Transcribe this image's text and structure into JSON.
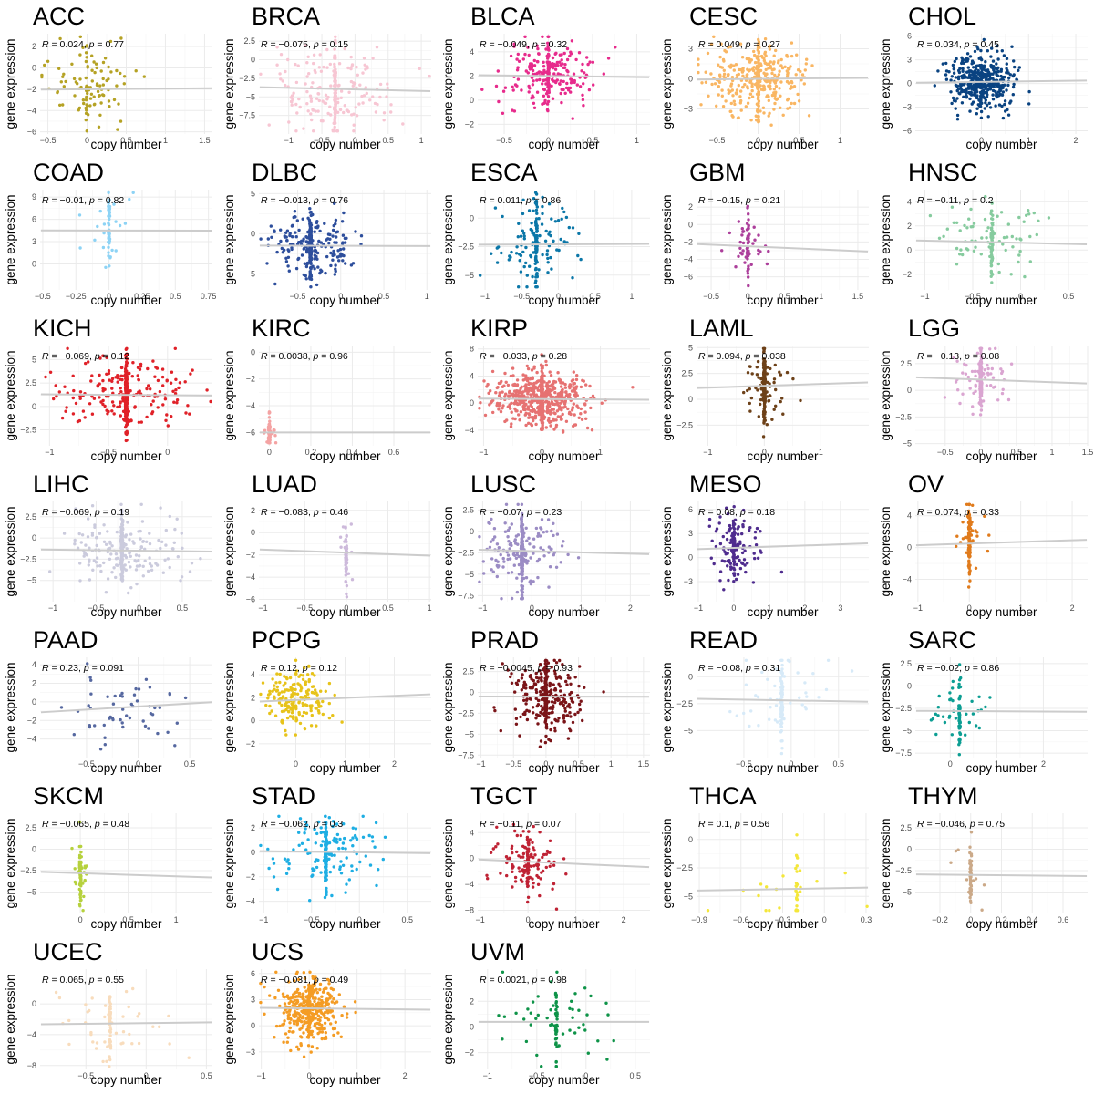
{
  "figure": {
    "xlabel": "copy number",
    "ylabel": "gene expression"
  },
  "chart_data": [
    {
      "type": "scatter",
      "title": "ACC",
      "r": "0.024",
      "p": "0.77",
      "xlim": [
        -0.6,
        1.6
      ],
      "ylim": [
        -6.2,
        3.2
      ],
      "xticks": [
        -0.5,
        0,
        0.5,
        1,
        1.5
      ],
      "yticks": [
        -6,
        -4,
        -2,
        0,
        2
      ],
      "color": "#B5A224",
      "n": 110,
      "xc": 0.0,
      "xsd": 0.3,
      "ysd": 1.9,
      "ymean": -2,
      "slope": 0.2,
      "anchor": 0.12,
      "seed": 1
    },
    {
      "type": "scatter",
      "title": "BRCA",
      "r": "−0.075",
      "p": "0.15",
      "xlim": [
        -1.45,
        1.15
      ],
      "ylim": [
        -10,
        3.5
      ],
      "xticks": [
        -1,
        -0.5,
        0,
        0.5,
        1
      ],
      "yticks": [
        2.5,
        0,
        -2.5,
        -5,
        -7.5
      ],
      "color": "#F7C6D3",
      "n": 230,
      "xc": -0.3,
      "xsd": 0.45,
      "ysd": 2.8,
      "ymean": -4,
      "slope": -0.7,
      "anchor": 0.35,
      "seed": 2
    },
    {
      "type": "scatter",
      "title": "BLCA",
      "r": "−0.049",
      "p": "0.32",
      "xlim": [
        -0.8,
        1.15
      ],
      "ylim": [
        -2.8,
        5.5
      ],
      "xticks": [
        -0.5,
        0,
        0.5,
        1
      ],
      "yticks": [
        4,
        2,
        0,
        -2
      ],
      "color": "#E72B8C",
      "n": 260,
      "xc": 0.0,
      "xsd": 0.28,
      "ysd": 1.4,
      "ymean": 2,
      "slope": -0.3,
      "anchor": 0.25,
      "seed": 3
    },
    {
      "type": "scatter",
      "title": "CESC",
      "r": "0.049",
      "p": "0.27",
      "xlim": [
        -0.75,
        1.35
      ],
      "ylim": [
        -5.5,
        4.5
      ],
      "xticks": [
        -0.5,
        0,
        0.5,
        1
      ],
      "yticks": [
        3,
        0,
        -3
      ],
      "color": "#F9B663",
      "n": 380,
      "xc": 0.0,
      "xsd": 0.3,
      "ysd": 1.7,
      "ymean": 0,
      "slope": 0.3,
      "anchor": 0.2,
      "seed": 4
    },
    {
      "type": "scatter",
      "title": "CHOL",
      "r": "0.034",
      "p": "0.45",
      "xlim": [
        -1.4,
        2.25
      ],
      "ylim": [
        -6.4,
        6.3
      ],
      "xticks": [
        0,
        1,
        2
      ],
      "yticks": [
        6,
        3,
        0,
        -3,
        -6
      ],
      "color": "#0A4381",
      "n": 440,
      "xc": 0.0,
      "xsd": 0.35,
      "ysd": 1.8,
      "ymean": 0.2,
      "slope": 0.25,
      "anchor": 0.1,
      "seed": 5
    },
    {
      "type": "scatter",
      "title": "COAD",
      "r": "−0.01",
      "p": "0.82",
      "xlim": [
        -0.52,
        0.78
      ],
      "ylim": [
        -3.5,
        10
      ],
      "xticks": [
        -0.5,
        -0.25,
        0,
        0.25,
        0.5,
        0.75
      ],
      "yticks": [
        9,
        6,
        3,
        0
      ],
      "color": "#8DD3F5",
      "n": 60,
      "xc": 0.0,
      "xsd": 0.1,
      "ysd": 2.2,
      "ymean": 4.5,
      "slope": -0.1,
      "anchor": 0.7,
      "seed": 6
    },
    {
      "type": "scatter",
      "title": "DLBC",
      "r": "−0.013",
      "p": "0.76",
      "xlim": [
        -0.95,
        1.05
      ],
      "ylim": [
        -7,
        5.5
      ],
      "xticks": [
        -0.5,
        0,
        0.5,
        1
      ],
      "yticks": [
        5,
        0,
        -5
      ],
      "color": "#2D4E9C",
      "n": 330,
      "xc": -0.35,
      "xsd": 0.25,
      "ysd": 1.8,
      "ymean": -1.5,
      "slope": -0.1,
      "anchor": 0.45,
      "seed": 7
    },
    {
      "type": "scatter",
      "title": "ESCA",
      "r": "0.011",
      "p": "0.86",
      "xlim": [
        -1.1,
        1.25
      ],
      "ylim": [
        -6.3,
        2.5
      ],
      "xticks": [
        -1,
        -0.5,
        0,
        0.5,
        1
      ],
      "yticks": [
        0,
        -2.5,
        -5
      ],
      "color": "#0B77A8",
      "n": 180,
      "xc": -0.3,
      "xsd": 0.3,
      "ysd": 1.8,
      "ymean": -2.3,
      "slope": 0.1,
      "anchor": 0.45,
      "seed": 8
    },
    {
      "type": "scatter",
      "title": "GBM",
      "r": "−0.15",
      "p": "0.21",
      "xlim": [
        -0.7,
        1.65
      ],
      "ylim": [
        -7.5,
        4
      ],
      "xticks": [
        -0.5,
        0,
        0.5,
        1,
        1.5
      ],
      "yticks": [
        2,
        0,
        -2,
        -4,
        -6
      ],
      "color": "#AC3F9B",
      "n": 70,
      "xc": 0.0,
      "xsd": 0.15,
      "ysd": 2,
      "ymean": -2.5,
      "slope": -1.2,
      "anchor": 0.55,
      "seed": 9
    },
    {
      "type": "scatter",
      "title": "HNSC",
      "r": "−0.11",
      "p": "0.2",
      "xlim": [
        -1.1,
        0.7
      ],
      "ylim": [
        -3.3,
        5
      ],
      "xticks": [
        -1,
        -0.5,
        0,
        0.5
      ],
      "yticks": [
        4,
        2,
        0,
        -2
      ],
      "color": "#86CB9E",
      "n": 130,
      "xc": -0.3,
      "xsd": 0.3,
      "ysd": 1.5,
      "ymean": 0.6,
      "slope": -0.6,
      "anchor": 0.5,
      "seed": 10
    },
    {
      "type": "scatter",
      "title": "KICH",
      "r": "−0.069",
      "p": "0.12",
      "xlim": [
        -1.08,
        0.38
      ],
      "ylim": [
        -4.2,
        6.5
      ],
      "xticks": [
        -1,
        -0.5,
        0
      ],
      "yticks": [
        5,
        2.5,
        0,
        -2.5
      ],
      "color": "#E02128",
      "n": 420,
      "xc": -0.35,
      "xsd": 0.3,
      "ysd": 1.8,
      "ymean": 1.2,
      "slope": -0.3,
      "anchor": 0.6,
      "seed": 11
    },
    {
      "type": "scatter",
      "title": "KIRC",
      "r": "0.0038",
      "p": "0.96",
      "xlim": [
        -0.05,
        0.78
      ],
      "ylim": [
        -7,
        0.5
      ],
      "xticks": [
        0,
        0.2,
        0.4,
        0.6
      ],
      "yticks": [
        0,
        -2,
        -4,
        -6
      ],
      "color": "#F4A3A3",
      "n": 45,
      "xc": 0.0,
      "xsd": 0.02,
      "ysd": 0.8,
      "ymean": -6,
      "slope": 0,
      "anchor": 0.8,
      "seed": 12
    },
    {
      "type": "scatter",
      "title": "KIRP",
      "r": "−0.033",
      "p": "0.28",
      "xlim": [
        -1.1,
        1.85
      ],
      "ylim": [
        -6.3,
        8.5
      ],
      "xticks": [
        -1,
        0,
        1
      ],
      "yticks": [
        8,
        4,
        0,
        -4
      ],
      "color": "#E67272",
      "n": 700,
      "xc": 0.0,
      "xsd": 0.4,
      "ysd": 2,
      "ymean": 0.6,
      "slope": -0.2,
      "anchor": 0.3,
      "seed": 13
    },
    {
      "type": "scatter",
      "title": "LAML",
      "r": "0.094",
      "p": "0.038",
      "xlim": [
        -1.2,
        1.85
      ],
      "ylim": [
        -4.5,
        5.2
      ],
      "xticks": [
        -1,
        0,
        1
      ],
      "yticks": [
        5,
        2.5,
        0,
        -2.5
      ],
      "color": "#6D4119",
      "n": 240,
      "xc": 0.0,
      "xsd": 0.2,
      "ysd": 1.6,
      "ymean": 1.3,
      "slope": 0.6,
      "anchor": 0.75,
      "seed": 14
    },
    {
      "type": "scatter",
      "title": "LGG",
      "r": "−0.13",
      "p": "0.08",
      "xlim": [
        -0.92,
        1.5
      ],
      "ylim": [
        -5.2,
        4.2
      ],
      "xticks": [
        -0.5,
        0,
        0.5,
        1,
        1.5
      ],
      "yticks": [
        2.5,
        0,
        -2.5,
        -5
      ],
      "color": "#DAA5D1",
      "n": 190,
      "xc": 0.0,
      "xsd": 0.2,
      "ysd": 1.2,
      "ymean": 1.0,
      "slope": -0.8,
      "anchor": 0.6,
      "seed": 15
    },
    {
      "type": "scatter",
      "title": "LIHC",
      "r": "−0.069",
      "p": "0.19",
      "xlim": [
        -1.15,
        0.85
      ],
      "ylim": [
        -7.5,
        4.3
      ],
      "xticks": [
        -1,
        -0.5,
        0,
        0.5
      ],
      "yticks": [
        2.5,
        0,
        -2.5,
        -5
      ],
      "color": "#CBCBDD",
      "n": 300,
      "xc": -0.2,
      "xsd": 0.35,
      "ysd": 2.0,
      "ymean": -1.5,
      "slope": -0.4,
      "anchor": 0.5,
      "seed": 16
    },
    {
      "type": "scatter",
      "title": "LUAD",
      "r": "−0.083",
      "p": "0.46",
      "xlim": [
        -1.05,
        1.02
      ],
      "ylim": [
        -6.2,
        2.8
      ],
      "xticks": [
        -1,
        -0.5,
        0,
        0.5,
        1
      ],
      "yticks": [
        2,
        0,
        -2,
        -4,
        -6
      ],
      "color": "#CDBADB",
      "n": 60,
      "xc": 0.0,
      "xsd": 0.06,
      "ysd": 1.5,
      "ymean": -1.8,
      "slope": -0.9,
      "anchor": 0.8,
      "seed": 17
    },
    {
      "type": "scatter",
      "title": "LUSC",
      "r": "−0.07",
      "p": "0.23",
      "xlim": [
        -1.1,
        2.4
      ],
      "ylim": [
        -8.2,
        3.5
      ],
      "xticks": [
        -1,
        0,
        1,
        2
      ],
      "yticks": [
        2.5,
        0,
        -2.5,
        -5,
        -7.5
      ],
      "color": "#9B8CC4",
      "n": 310,
      "xc": -0.2,
      "xsd": 0.4,
      "ysd": 2.2,
      "ymean": -2.3,
      "slope": -0.5,
      "anchor": 0.5,
      "seed": 18
    },
    {
      "type": "scatter",
      "title": "MESO",
      "r": "0.08",
      "p": "0.18",
      "xlim": [
        -1.05,
        3.8
      ],
      "ylim": [
        -5.5,
        7
      ],
      "xticks": [
        -1,
        0,
        1,
        2,
        3
      ],
      "yticks": [
        6,
        3,
        0,
        -3
      ],
      "color": "#4F2C8E",
      "n": 160,
      "xc": 0.0,
      "xsd": 0.35,
      "ysd": 2,
      "ymean": 1.2,
      "slope": 0.5,
      "anchor": 0.3,
      "seed": 19
    },
    {
      "type": "scatter",
      "title": "OV",
      "r": "0.074",
      "p": "0.33",
      "xlim": [
        -1.05,
        2.3
      ],
      "ylim": [
        -6.8,
        5.8
      ],
      "xticks": [
        -1,
        0,
        1,
        2
      ],
      "yticks": [
        4,
        0,
        -4
      ],
      "color": "#E07B1C",
      "n": 120,
      "xc": 0.0,
      "xsd": 0.15,
      "ysd": 2.3,
      "ymean": 0.5,
      "slope": 0.7,
      "anchor": 0.8,
      "seed": 20
    },
    {
      "type": "scatter",
      "title": "PAAD",
      "r": "0.23",
      "p": "0.091",
      "xlim": [
        -0.95,
        0.72
      ],
      "ylim": [
        -6,
        4.8
      ],
      "xticks": [
        -0.5,
        0,
        0.5
      ],
      "yticks": [
        4,
        2,
        0,
        -2,
        -4
      ],
      "color": "#5668A0",
      "n": 55,
      "xc": -0.15,
      "xsd": 0.35,
      "ysd": 2,
      "ymean": -0.5,
      "slope": 2.2,
      "anchor": 0.1,
      "seed": 21
    },
    {
      "type": "scatter",
      "title": "PCPG",
      "r": "0.12",
      "p": "0.12",
      "xlim": [
        -0.75,
        2.75
      ],
      "ylim": [
        -3.2,
        5.5
      ],
      "xticks": [
        0,
        1,
        2
      ],
      "yticks": [
        4,
        2,
        0,
        -2
      ],
      "color": "#E7C31A",
      "n": 190,
      "xc": 0.0,
      "xsd": 0.3,
      "ysd": 1.3,
      "ymean": 1.8,
      "slope": 0.6,
      "anchor": 0.1,
      "seed": 22
    },
    {
      "type": "scatter",
      "title": "PRAD",
      "r": "−0.0045",
      "p": "0.93",
      "xlim": [
        -1.05,
        1.6
      ],
      "ylim": [
        -7.8,
        4.2
      ],
      "xticks": [
        -1,
        -0.5,
        0,
        0.5,
        1,
        1.5
      ],
      "yticks": [
        2.5,
        0,
        -2.5,
        -5,
        -7.5
      ],
      "color": "#7A1418",
      "n": 340,
      "xc": 0.0,
      "xsd": 0.3,
      "ysd": 2.0,
      "ymean": -0.5,
      "slope": -0.05,
      "anchor": 0.35,
      "seed": 23
    },
    {
      "type": "scatter",
      "title": "READ",
      "r": "−0.08",
      "p": "0.31",
      "xlim": [
        -1.0,
        0.82
      ],
      "ylim": [
        -7.5,
        1.8
      ],
      "xticks": [
        -0.5,
        0,
        0.5
      ],
      "yticks": [
        0,
        -2.5,
        -5
      ],
      "color": "#D7EAF8",
      "n": 120,
      "xc": -0.1,
      "xsd": 0.3,
      "ysd": 1.8,
      "ymean": -2.2,
      "slope": -0.5,
      "anchor": 0.6,
      "seed": 24
    },
    {
      "type": "scatter",
      "title": "SARC",
      "r": "−0.02",
      "p": "0.86",
      "xlim": [
        -0.75,
        2.95
      ],
      "ylim": [
        -8,
        3.2
      ],
      "xticks": [
        0,
        1,
        2
      ],
      "yticks": [
        2.5,
        0,
        -2.5,
        -5,
        -7.5
      ],
      "color": "#0C9E93",
      "n": 80,
      "xc": 0.2,
      "xsd": 0.4,
      "ysd": 1.9,
      "ymean": -2.8,
      "slope": -0.1,
      "anchor": 0.5,
      "seed": 25
    },
    {
      "type": "scatter",
      "title": "SKCM",
      "r": "−0.065",
      "p": "0.48",
      "xlim": [
        -0.42,
        1.38
      ],
      "ylim": [
        -7.5,
        4.2
      ],
      "xticks": [
        0,
        0.5,
        1
      ],
      "yticks": [
        2.5,
        0,
        -2.5,
        -5
      ],
      "color": "#B6D13D",
      "n": 80,
      "xc": 0.0,
      "xsd": 0.05,
      "ysd": 1.8,
      "ymean": -2.8,
      "slope": -1.2,
      "anchor": 0.8,
      "seed": 26
    },
    {
      "type": "scatter",
      "title": "STAD",
      "r": "−0.062",
      "p": "0.3",
      "xlim": [
        -1.05,
        0.75
      ],
      "ylim": [
        -5,
        3.2
      ],
      "xticks": [
        -1,
        -0.5,
        0,
        0.5
      ],
      "yticks": [
        2,
        0,
        -2,
        -4
      ],
      "color": "#1EAEE3",
      "n": 250,
      "xc": -0.35,
      "xsd": 0.3,
      "ysd": 1.4,
      "ymean": 0,
      "slope": -0.3,
      "anchor": 0.5,
      "seed": 27
    },
    {
      "type": "scatter",
      "title": "TGCT",
      "r": "−0.11",
      "p": "0.07",
      "xlim": [
        -1.05,
        2.55
      ],
      "ylim": [
        -8.5,
        7
      ],
      "xticks": [
        -1,
        0,
        1,
        2
      ],
      "yticks": [
        4,
        0,
        -4,
        -8
      ],
      "color": "#BF2234",
      "n": 160,
      "xc": 0.0,
      "xsd": 0.4,
      "ysd": 2.4,
      "ymean": -0.5,
      "slope": -1.1,
      "anchor": 0.35,
      "seed": 28
    },
    {
      "type": "scatter",
      "title": "THCA",
      "r": "0.1",
      "p": "0.56",
      "xlim": [
        -0.92,
        0.32
      ],
      "ylim": [
        -6.5,
        2.3
      ],
      "xticks": [
        -0.9,
        -0.6,
        -0.3,
        0,
        0.3
      ],
      "yticks": [
        0,
        -2.5,
        -5
      ],
      "color": "#F4E73A",
      "n": 40,
      "xc": -0.2,
      "xsd": 0.3,
      "ysd": 1.8,
      "ymean": -4.3,
      "slope": 0.7,
      "anchor": 0.55,
      "seed": 29
    },
    {
      "type": "scatter",
      "title": "THYM",
      "r": "−0.046",
      "p": "0.75",
      "xlim": [
        -0.36,
        0.76
      ],
      "ylim": [
        -7.5,
        4.2
      ],
      "xticks": [
        -0.2,
        0,
        0.2,
        0.4,
        0.6
      ],
      "yticks": [
        2.5,
        0,
        -2.5,
        -5
      ],
      "color": "#CBA988",
      "n": 55,
      "xc": 0.0,
      "xsd": 0.05,
      "ysd": 2.0,
      "ymean": -3.0,
      "slope": -0.6,
      "anchor": 0.85,
      "seed": 30
    },
    {
      "type": "scatter",
      "title": "UCEC",
      "r": "0.065",
      "p": "0.55",
      "xlim": [
        -0.88,
        0.55
      ],
      "ylim": [
        -8.5,
        4.5
      ],
      "xticks": [
        -0.5,
        0,
        0.5
      ],
      "yticks": [
        0,
        -4,
        -8
      ],
      "color": "#F8DCBC",
      "n": 90,
      "xc": -0.3,
      "xsd": 0.25,
      "ysd": 2.5,
      "ymean": -2.5,
      "slope": 0.6,
      "anchor": 0.55,
      "seed": 31
    },
    {
      "type": "scatter",
      "title": "UCS",
      "r": "−0.031",
      "p": "0.49",
      "xlim": [
        -1.05,
        2.55
      ],
      "ylim": [
        -5,
        6.5
      ],
      "xticks": [
        -1,
        0,
        1,
        2
      ],
      "yticks": [
        6,
        3,
        0,
        -3
      ],
      "color": "#F49C24",
      "n": 430,
      "xc": 0.0,
      "xsd": 0.35,
      "ysd": 1.8,
      "ymean": 2,
      "slope": -0.2,
      "anchor": 0.2,
      "seed": 32
    },
    {
      "type": "scatter",
      "title": "UVM",
      "r": "0.0021",
      "p": "0.98",
      "xlim": [
        -1.1,
        0.65
      ],
      "ylim": [
        -3.3,
        4.5
      ],
      "xticks": [
        -1,
        -0.5,
        0,
        0.5
      ],
      "yticks": [
        2,
        0,
        -2
      ],
      "color": "#0E9348",
      "n": 90,
      "xc": -0.3,
      "xsd": 0.35,
      "ysd": 1.5,
      "ymean": 0.4,
      "slope": 0,
      "anchor": 0.5,
      "seed": 33
    }
  ]
}
